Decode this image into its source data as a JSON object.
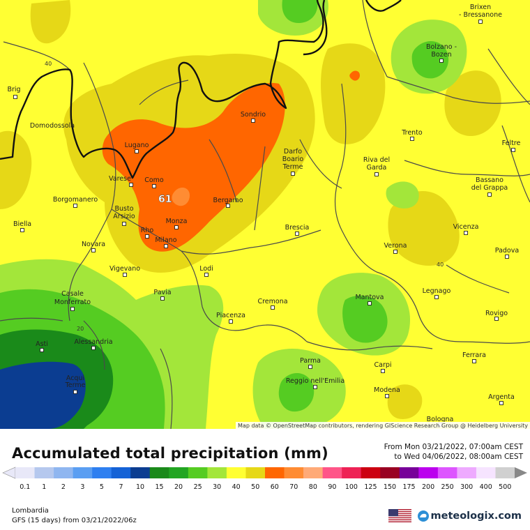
{
  "map": {
    "peak_value": "61",
    "contour_labels": [
      "40",
      "40",
      "20"
    ],
    "colors": {
      "c20": "#22a522",
      "c25": "#55cc22",
      "c30": "#a3e63a",
      "c40": "#ffff33",
      "c50": "#e6d817",
      "c60": "#ff6600",
      "c70": "#ff8c33",
      "c15": "#1a8a1a",
      "c10": "#0b3d91",
      "border": "#111111",
      "admin": "#4a4a4a"
    },
    "cities": [
      {
        "name": "Brixen"
      },
      {
        "name": "- Bressanone"
      },
      {
        "name": "Bolzano -"
      },
      {
        "name": "Bozen"
      },
      {
        "name": "Brig"
      },
      {
        "name": "Domodossola"
      },
      {
        "name": "Sondrio"
      },
      {
        "name": "Trento"
      },
      {
        "name": "Feltre"
      },
      {
        "name": "Lugano"
      },
      {
        "name": "Darfo"
      },
      {
        "name": "Boario"
      },
      {
        "name": "Terme"
      },
      {
        "name": "Riva del"
      },
      {
        "name": "Garda"
      },
      {
        "name": "Varese"
      },
      {
        "name": "Como"
      },
      {
        "name": "Bassano"
      },
      {
        "name": "del Grappa"
      },
      {
        "name": "Borgomanero"
      },
      {
        "name": "Bergamo"
      },
      {
        "name": "Busto"
      },
      {
        "name": "Arsizio"
      },
      {
        "name": "Biella"
      },
      {
        "name": "Monza"
      },
      {
        "name": "Vicenza"
      },
      {
        "name": "Rho"
      },
      {
        "name": "Brescia"
      },
      {
        "name": "Milano"
      },
      {
        "name": "Novara"
      },
      {
        "name": "Verona"
      },
      {
        "name": "Padova"
      },
      {
        "name": "Vigevano"
      },
      {
        "name": "Lodi"
      },
      {
        "name": "Legnago"
      },
      {
        "name": "Pavia"
      },
      {
        "name": "Casale"
      },
      {
        "name": "Monferrato"
      },
      {
        "name": "Mantova"
      },
      {
        "name": "Cremona"
      },
      {
        "name": "Rovigo"
      },
      {
        "name": "Piacenza"
      },
      {
        "name": "Asti"
      },
      {
        "name": "Alessandria"
      },
      {
        "name": "Ferrara"
      },
      {
        "name": "Parma"
      },
      {
        "name": "Carpi"
      },
      {
        "name": "Acqui"
      },
      {
        "name": "Terme"
      },
      {
        "name": "Reggio nell'Emilia"
      },
      {
        "name": "Modena"
      },
      {
        "name": "Argenta"
      },
      {
        "name": "Bologna"
      }
    ],
    "attribution": "Map data © OpenStreetMap contributors, rendering GIScience Research Group @ Heidelberg University"
  },
  "footer": {
    "title": "Accumulated total precipitation (mm)",
    "period_from": "From Mon 03/21/2022, 07:00am CEST",
    "period_to": "to Wed 04/06/2022, 08:00am CEST",
    "region": "Lombardia",
    "model": "GFS (15 days) from 03/21/2022/06z",
    "brand": "meteologix.com",
    "flag_icon": "us-flag-icon",
    "brand_icon": "meteologix-logo-icon"
  },
  "legend": {
    "labels": [
      "0.1",
      "1",
      "2",
      "3",
      "5",
      "7",
      "10",
      "15",
      "20",
      "25",
      "30",
      "40",
      "50",
      "60",
      "70",
      "80",
      "90",
      "100",
      "125",
      "150",
      "175",
      "200",
      "250",
      "300",
      "400",
      "500"
    ],
    "colors": [
      "#e8e8f8",
      "#b5c8ee",
      "#8fb6f0",
      "#5a9ef2",
      "#2e7ff0",
      "#1462d6",
      "#0b3d91",
      "#1a8a1a",
      "#22a522",
      "#55cc22",
      "#a3e63a",
      "#ffff33",
      "#e6d817",
      "#ff6600",
      "#ff8c33",
      "#ffaa77",
      "#ff5588",
      "#ee2255",
      "#cc0011",
      "#990022",
      "#770099",
      "#bb00ee",
      "#dd55ff",
      "#eeaaff",
      "#f6e4ff",
      "#d0d0d0"
    ]
  }
}
